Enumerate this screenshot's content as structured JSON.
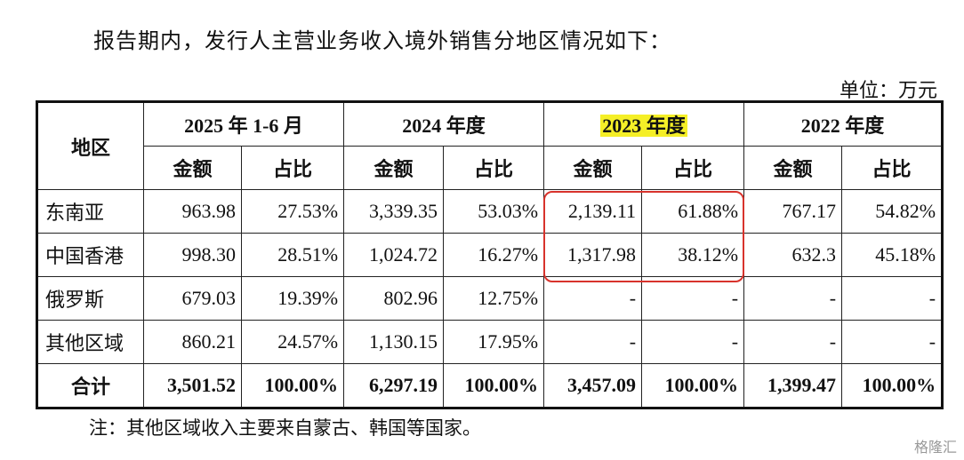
{
  "intro": "报告期内，发行人主营业务收入境外销售分地区情况如下：",
  "unit": "单位：万元",
  "table": {
    "header": {
      "region": "地区",
      "periods": [
        "2025 年 1-6 月",
        "2024 年度",
        "2023 年度",
        "2022 年度"
      ],
      "subheaders": [
        "金额",
        "占比",
        "金额",
        "占比",
        "金额",
        "占比",
        "金额",
        "占比"
      ]
    },
    "rows": [
      [
        "东南亚",
        "963.98",
        "27.53%",
        "3,339.35",
        "53.03%",
        "2,139.11",
        "61.88%",
        "767.17",
        "54.82%"
      ],
      [
        "中国香港",
        "998.30",
        "28.51%",
        "1,024.72",
        "16.27%",
        "1,317.98",
        "38.12%",
        "632.3",
        "45.18%"
      ],
      [
        "俄罗斯",
        "679.03",
        "19.39%",
        "802.96",
        "12.75%",
        "-",
        "-",
        "-",
        "-"
      ],
      [
        "其他区域",
        "860.21",
        "24.57%",
        "1,130.15",
        "17.95%",
        "-",
        "-",
        "-",
        "-"
      ]
    ],
    "total": [
      "合计",
      "3,501.52",
      "100.00%",
      "6,297.19",
      "100.00%",
      "3,457.09",
      "100.00%",
      "1,399.47",
      "100.00%"
    ]
  },
  "note": "注：其他区域收入主要来自蒙古、韩国等国家。",
  "watermark": "格隆汇"
}
